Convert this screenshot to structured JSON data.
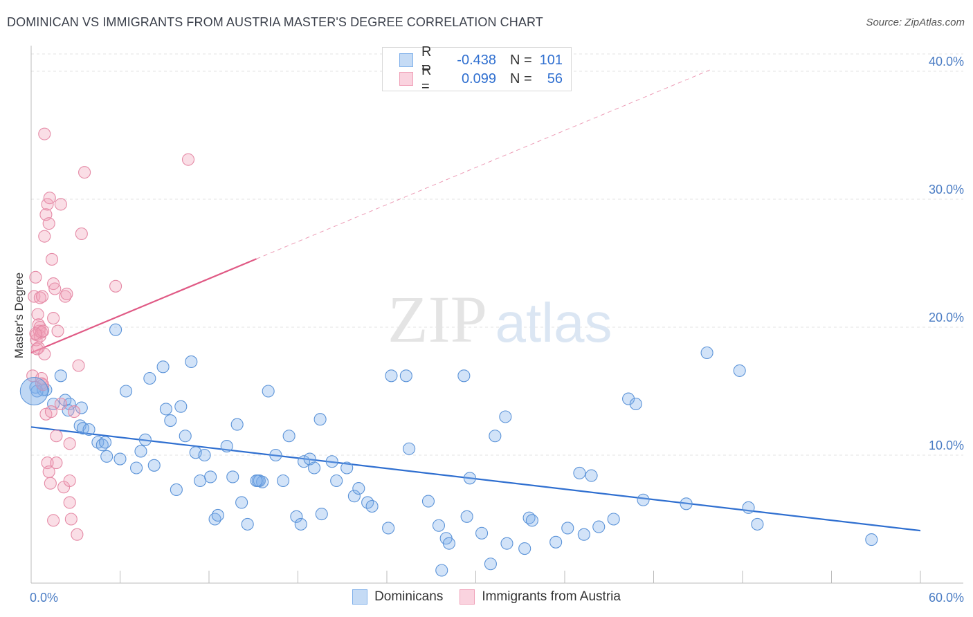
{
  "header": {
    "title": "DOMINICAN VS IMMIGRANTS FROM AUSTRIA MASTER'S DEGREE CORRELATION CHART",
    "source": "Source: ZipAtlas.com"
  },
  "watermark": {
    "zip": "ZIP",
    "atlas": "atlas"
  },
  "legend": {
    "rows": [
      {
        "r_label": "R =",
        "r_value": "-0.438",
        "n_label": "N =",
        "n_value": "101",
        "color": "#7fb0ea"
      },
      {
        "r_label": "R =",
        "r_value": "0.099",
        "n_label": "N =",
        "n_value": "56",
        "color": "#f0a0b8"
      }
    ]
  },
  "bottom_legend": [
    {
      "label": "Dominicans",
      "color": "#7fb0ea"
    },
    {
      "label": "Immigrants from Austria",
      "color": "#f0a0b8"
    }
  ],
  "chart_data": {
    "type": "scatter",
    "title": "DOMINICAN VS IMMIGRANTS FROM AUSTRIA MASTER'S DEGREE CORRELATION CHART",
    "xlabel": "",
    "ylabel": "Master's Degree",
    "xlim": [
      0,
      60
    ],
    "ylim": [
      0,
      42
    ],
    "x_tick_labels": [
      {
        "value": 0,
        "label": "0.0%"
      },
      {
        "value": 60,
        "label": "60.0%"
      }
    ],
    "x_minor_ticks": [
      0,
      6,
      12,
      18,
      24,
      30,
      36,
      42,
      48,
      54,
      60
    ],
    "y_ticks": [
      {
        "value": 10,
        "label": "10.0%"
      },
      {
        "value": 20,
        "label": "20.0%"
      },
      {
        "value": 30,
        "label": "30.0%"
      },
      {
        "value": 40,
        "label": "40.0%"
      }
    ],
    "grid": true,
    "series": [
      {
        "name": "Dominicans",
        "color": "#7fb0ea",
        "stroke": "#5b93d8",
        "line_color": "#2f6fd0",
        "trend": {
          "x1": 0,
          "y1": 12.2,
          "x2": 60,
          "y2": 4.1,
          "solid_until": 60
        },
        "points": [
          [
            0.3,
            15.3
          ],
          [
            1.0,
            15.1
          ],
          [
            0.8,
            15.1
          ],
          [
            2.0,
            16.2
          ],
          [
            1.5,
            14.0
          ],
          [
            2.3,
            14.3
          ],
          [
            2.6,
            14.0
          ],
          [
            2.5,
            13.5
          ],
          [
            3.4,
            13.7
          ],
          [
            3.3,
            12.3
          ],
          [
            3.5,
            12.1
          ],
          [
            3.9,
            12.0
          ],
          [
            4.5,
            11.0
          ],
          [
            4.8,
            10.8
          ],
          [
            5.0,
            11.0
          ],
          [
            5.1,
            9.9
          ],
          [
            5.7,
            19.8
          ],
          [
            6.4,
            15.0
          ],
          [
            6.0,
            9.7
          ],
          [
            7.1,
            9.0
          ],
          [
            7.7,
            11.2
          ],
          [
            7.4,
            10.3
          ],
          [
            8.0,
            16.0
          ],
          [
            8.3,
            9.2
          ],
          [
            8.9,
            16.9
          ],
          [
            9.1,
            13.6
          ],
          [
            9.4,
            12.7
          ],
          [
            9.8,
            7.3
          ],
          [
            10.1,
            13.8
          ],
          [
            10.4,
            11.5
          ],
          [
            10.8,
            17.3
          ],
          [
            11.1,
            10.2
          ],
          [
            11.4,
            8.0
          ],
          [
            11.7,
            10.0
          ],
          [
            12.1,
            8.3
          ],
          [
            12.4,
            5.0
          ],
          [
            12.6,
            5.3
          ],
          [
            13.2,
            10.7
          ],
          [
            13.6,
            8.3
          ],
          [
            13.9,
            12.4
          ],
          [
            14.2,
            6.3
          ],
          [
            14.6,
            4.6
          ],
          [
            15.3,
            8.0
          ],
          [
            15.6,
            7.9
          ],
          [
            15.4,
            8.0
          ],
          [
            15.2,
            8.0
          ],
          [
            16.0,
            15.0
          ],
          [
            16.5,
            10.0
          ],
          [
            17.0,
            8.0
          ],
          [
            17.4,
            11.5
          ],
          [
            17.9,
            5.2
          ],
          [
            18.4,
            9.5
          ],
          [
            18.2,
            4.6
          ],
          [
            18.8,
            9.7
          ],
          [
            19.1,
            9.0
          ],
          [
            19.5,
            12.8
          ],
          [
            19.6,
            5.4
          ],
          [
            20.3,
            9.5
          ],
          [
            20.6,
            8.0
          ],
          [
            21.3,
            9.0
          ],
          [
            21.8,
            6.8
          ],
          [
            22.1,
            7.4
          ],
          [
            22.7,
            6.3
          ],
          [
            23.0,
            6.0
          ],
          [
            24.1,
            4.3
          ],
          [
            24.3,
            16.2
          ],
          [
            25.3,
            16.2
          ],
          [
            25.5,
            10.5
          ],
          [
            26.8,
            6.4
          ],
          [
            27.5,
            4.5
          ],
          [
            28.0,
            3.5
          ],
          [
            28.2,
            3.1
          ],
          [
            27.7,
            1.0
          ],
          [
            29.2,
            16.2
          ],
          [
            29.4,
            5.2
          ],
          [
            29.6,
            8.2
          ],
          [
            30.4,
            3.9
          ],
          [
            31.0,
            1.5
          ],
          [
            31.3,
            11.5
          ],
          [
            32.1,
            3.1
          ],
          [
            32.0,
            13.0
          ],
          [
            33.6,
            5.1
          ],
          [
            33.8,
            4.9
          ],
          [
            33.3,
            2.7
          ],
          [
            35.4,
            3.2
          ],
          [
            36.2,
            4.3
          ],
          [
            37.0,
            8.6
          ],
          [
            37.8,
            8.4
          ],
          [
            37.3,
            3.8
          ],
          [
            38.3,
            4.4
          ],
          [
            39.3,
            5.0
          ],
          [
            40.3,
            14.4
          ],
          [
            40.8,
            14.0
          ],
          [
            41.3,
            6.5
          ],
          [
            44.2,
            6.2
          ],
          [
            45.6,
            18.0
          ],
          [
            47.8,
            16.6
          ],
          [
            48.4,
            5.9
          ],
          [
            49.0,
            4.6
          ],
          [
            56.7,
            3.4
          ],
          [
            0.4,
            15.0
          ]
        ]
      },
      {
        "name": "Immigrants from Austria",
        "color": "#f0a0b8",
        "stroke": "#e58aa6",
        "line_color": "#e05a85",
        "trend": {
          "x1": 0,
          "y1": 18.0,
          "x2": 46,
          "y2": 40.2,
          "solid_until": 15.2
        },
        "points": [
          [
            0.1,
            16.2
          ],
          [
            0.2,
            22.4
          ],
          [
            0.3,
            23.9
          ],
          [
            0.35,
            19.4
          ],
          [
            0.35,
            19.0
          ],
          [
            0.4,
            18.3
          ],
          [
            0.45,
            21.0
          ],
          [
            0.5,
            20.2
          ],
          [
            0.5,
            18.4
          ],
          [
            0.55,
            19.7
          ],
          [
            0.6,
            22.3
          ],
          [
            0.6,
            20.0
          ],
          [
            0.6,
            19.3
          ],
          [
            0.7,
            15.6
          ],
          [
            0.7,
            19.6
          ],
          [
            0.7,
            16.0
          ],
          [
            0.75,
            22.4
          ],
          [
            0.8,
            15.5
          ],
          [
            0.8,
            19.7
          ],
          [
            0.9,
            35.1
          ],
          [
            0.9,
            27.1
          ],
          [
            0.9,
            17.9
          ],
          [
            1.0,
            28.8
          ],
          [
            1.0,
            13.2
          ],
          [
            1.1,
            29.6
          ],
          [
            1.1,
            9.4
          ],
          [
            1.2,
            8.7
          ],
          [
            1.2,
            28.1
          ],
          [
            1.25,
            30.1
          ],
          [
            1.3,
            7.8
          ],
          [
            1.35,
            13.4
          ],
          [
            1.4,
            25.3
          ],
          [
            1.5,
            4.9
          ],
          [
            1.5,
            20.7
          ],
          [
            1.5,
            23.4
          ],
          [
            1.6,
            23.0
          ],
          [
            1.7,
            11.5
          ],
          [
            1.7,
            9.4
          ],
          [
            1.8,
            19.7
          ],
          [
            2.0,
            29.6
          ],
          [
            2.0,
            14.0
          ],
          [
            2.2,
            7.5
          ],
          [
            2.3,
            22.4
          ],
          [
            2.4,
            22.6
          ],
          [
            2.6,
            10.9
          ],
          [
            2.6,
            6.3
          ],
          [
            2.6,
            8.0
          ],
          [
            2.7,
            5.0
          ],
          [
            2.9,
            13.4
          ],
          [
            3.1,
            3.8
          ],
          [
            3.2,
            17.0
          ],
          [
            3.4,
            27.3
          ],
          [
            3.6,
            32.1
          ],
          [
            5.7,
            23.2
          ],
          [
            10.6,
            33.1
          ],
          [
            0.3,
            19.5
          ]
        ]
      }
    ]
  }
}
